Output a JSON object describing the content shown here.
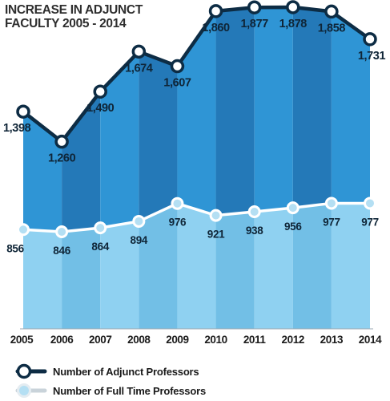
{
  "chart_data": {
    "type": "area",
    "title_lines": [
      "INCREASE IN ADJUNCT",
      "FACULTY 2005 - 2014"
    ],
    "categories": [
      "2005",
      "2006",
      "2007",
      "2008",
      "2009",
      "2010",
      "2011",
      "2012",
      "2013",
      "2014"
    ],
    "series": [
      {
        "name": "Number of Adjunct Professors",
        "values": [
          1398,
          1260,
          1490,
          1674,
          1607,
          1860,
          1877,
          1878,
          1858,
          1731
        ],
        "labels": [
          "1,398",
          "1,260",
          "1,490",
          "1,674",
          "1,607",
          "1,860",
          "1,877",
          "1,878",
          "1,858",
          "1,731"
        ]
      },
      {
        "name": "Number of Full Time Professors",
        "values": [
          856,
          846,
          864,
          894,
          976,
          921,
          938,
          956,
          977,
          977
        ],
        "labels": [
          "856",
          "846",
          "864",
          "894",
          "976",
          "921",
          "938",
          "956",
          "977",
          "977"
        ]
      }
    ],
    "ylim": [
      400,
      1900
    ],
    "grid": false,
    "legend_position": "bottom-left",
    "colors": {
      "adjunct_fill_light": "#2f95d5",
      "adjunct_fill_dark": "#2479b8",
      "adjunct_line": "#0d2c44",
      "fulltime_fill_light": "#8fd1f1",
      "fulltime_fill_dark": "#72bfe6",
      "fulltime_line": "#ffffff",
      "fulltime_marker": "#b4dff3"
    }
  }
}
